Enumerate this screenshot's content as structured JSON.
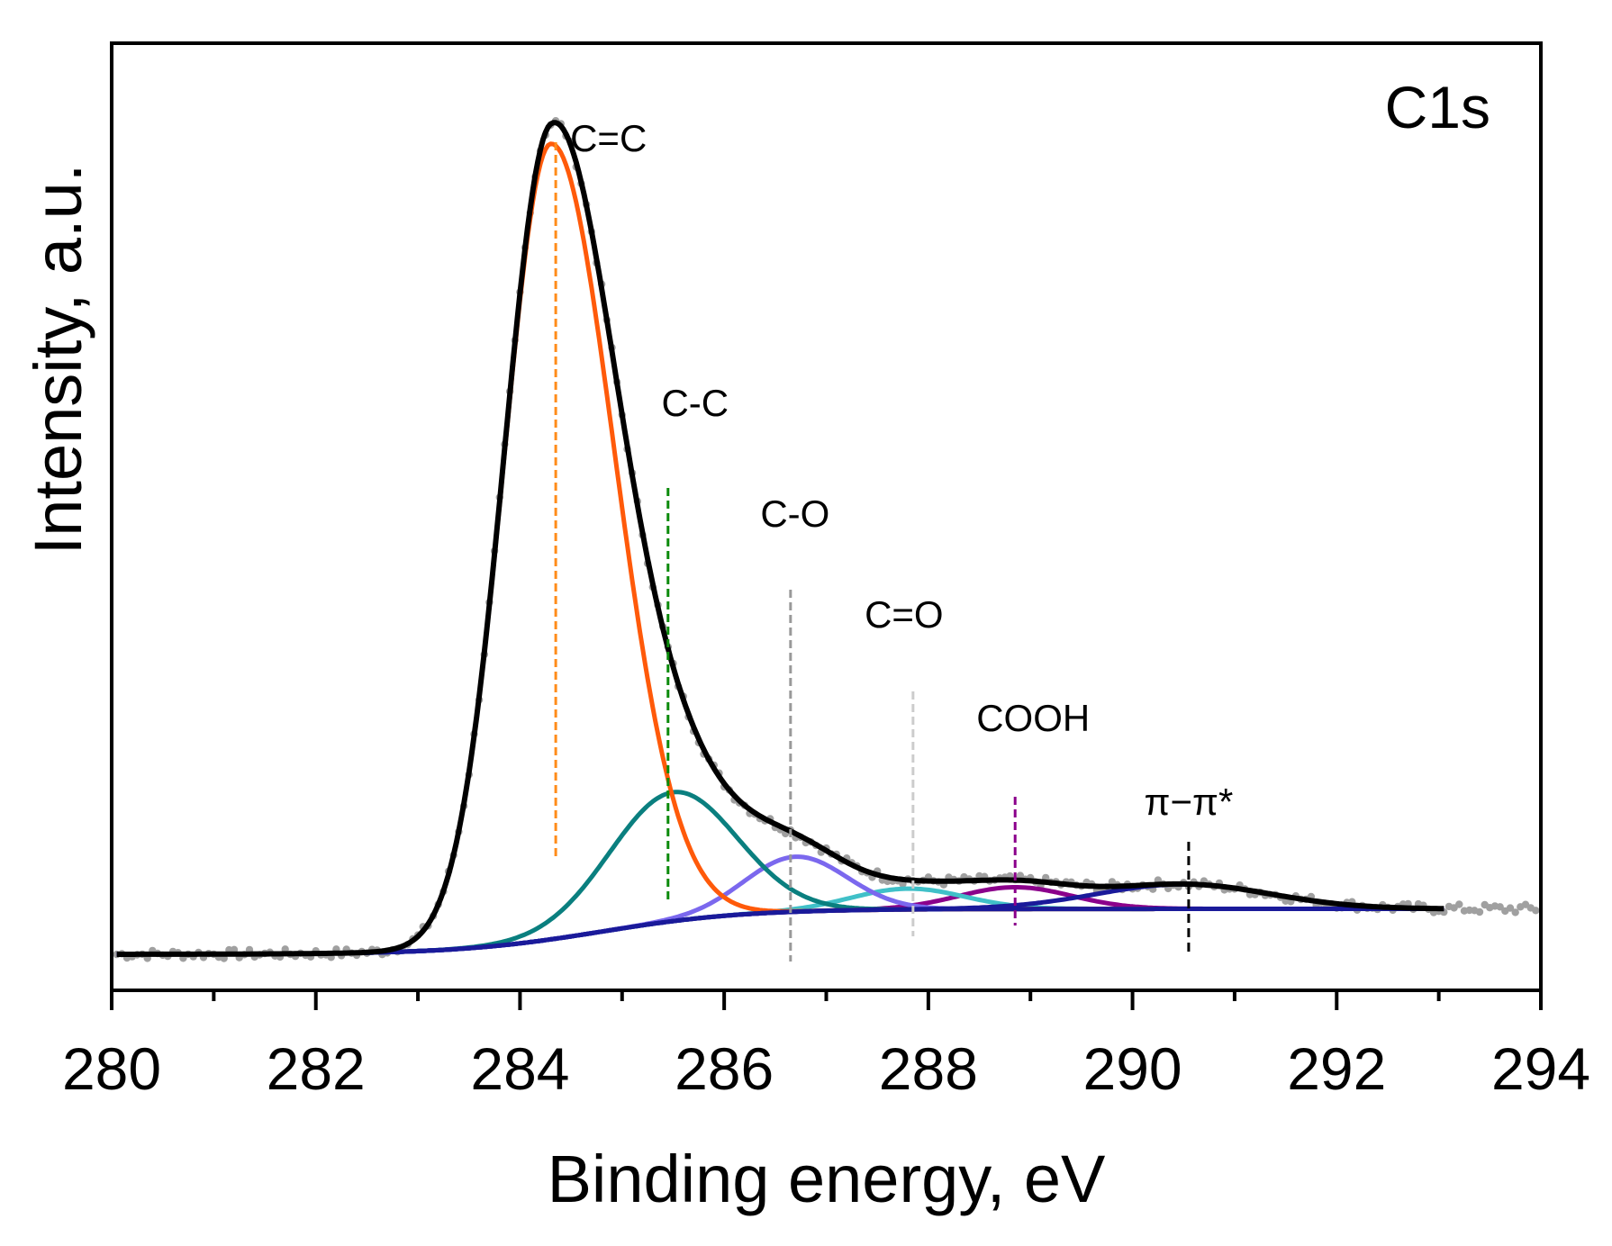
{
  "chart_data": {
    "type": "line",
    "panel_label": "C1s",
    "xlabel": "Binding energy, eV",
    "ylabel": "Intensity, a.u.",
    "xlim": [
      280,
      294
    ],
    "ylim": [
      0,
      100
    ],
    "y_ticks_labeled": false,
    "x_ticks": [
      280,
      282,
      284,
      286,
      288,
      290,
      292,
      294
    ],
    "x_tick_labels": [
      "280",
      "282",
      "284",
      "286",
      "288",
      "290",
      "292",
      "294"
    ],
    "grid": false,
    "legend": null,
    "colors": {
      "data": "#a0a0a0",
      "envelope": "#000000",
      "cc_double": "#ff5a0a",
      "cc_single": "#0a7f7f",
      "co": "#7b68ee",
      "c_double_o": "#40c0c8",
      "cooh": "#8b008b",
      "pi_pi": "#1a1a9a",
      "background": "#1a1a9a"
    },
    "background_line": {
      "left": 3.8,
      "right": 8.6,
      "center": 284.8,
      "width": 0.7
    },
    "peaks": [
      {
        "key": "cc_double",
        "center": 284.3,
        "height": 84.0,
        "sigma_left": 0.46,
        "sigma_right": 0.62
      },
      {
        "key": "cc_single",
        "center": 285.5,
        "height": 13.6,
        "sigma": 0.62
      },
      {
        "key": "co",
        "center": 286.7,
        "height": 5.8,
        "sigma": 0.5
      },
      {
        "key": "c_double_o",
        "center": 287.8,
        "height": 2.2,
        "sigma": 0.55
      },
      {
        "key": "cooh",
        "center": 288.85,
        "height": 2.3,
        "sigma": 0.55
      },
      {
        "key": "pi_pi",
        "center": 290.5,
        "height": 2.6,
        "sigma": 0.85
      }
    ],
    "annotations": [
      {
        "text": "C=C",
        "x": 284.35,
        "color": "#ff8c1a"
      },
      {
        "text": "C-C",
        "x": 285.45,
        "color": "#0a8a0a"
      },
      {
        "text": "C-O",
        "x": 286.65,
        "color": "#999999"
      },
      {
        "text": "C=O",
        "x": 287.85,
        "color": "#cccccc"
      },
      {
        "text": "COOH",
        "x": 288.85,
        "color": "#8b008b"
      },
      {
        "text": "π−π*",
        "x": 290.55,
        "color": "#000000"
      }
    ]
  }
}
